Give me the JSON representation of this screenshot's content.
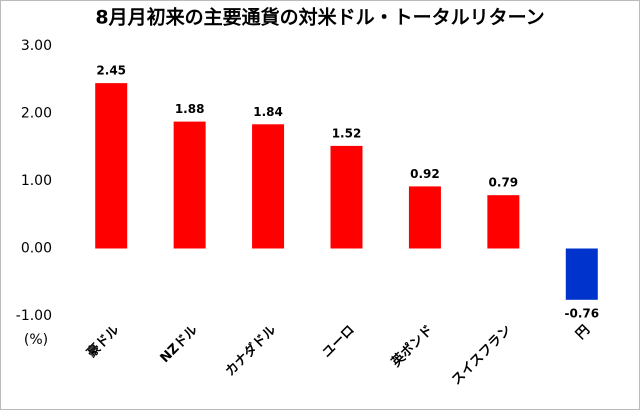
{
  "chart_data": {
    "type": "bar",
    "title": "8月月初来の主要通貨の対米ドル・トータルリターン",
    "y_unit_label": "(%)",
    "categories": [
      "豪ドル",
      "NZドル",
      "カナダドル",
      "ユーロ",
      "英ポンド",
      "スイスフラン",
      "円"
    ],
    "values": [
      2.45,
      1.88,
      1.84,
      1.52,
      0.92,
      0.79,
      -0.76
    ],
    "colors": [
      "#ff0000",
      "#ff0000",
      "#ff0000",
      "#ff0000",
      "#ff0000",
      "#ff0000",
      "#0033cc"
    ],
    "ylim": [
      -1,
      3
    ],
    "yticks": [
      {
        "value": -1,
        "label": "-1.00"
      },
      {
        "value": 0,
        "label": "0.00"
      },
      {
        "value": 1,
        "label": "1.00"
      },
      {
        "value": 2,
        "label": "2.00"
      },
      {
        "value": 3,
        "label": "3.00"
      }
    ],
    "grid": false
  }
}
